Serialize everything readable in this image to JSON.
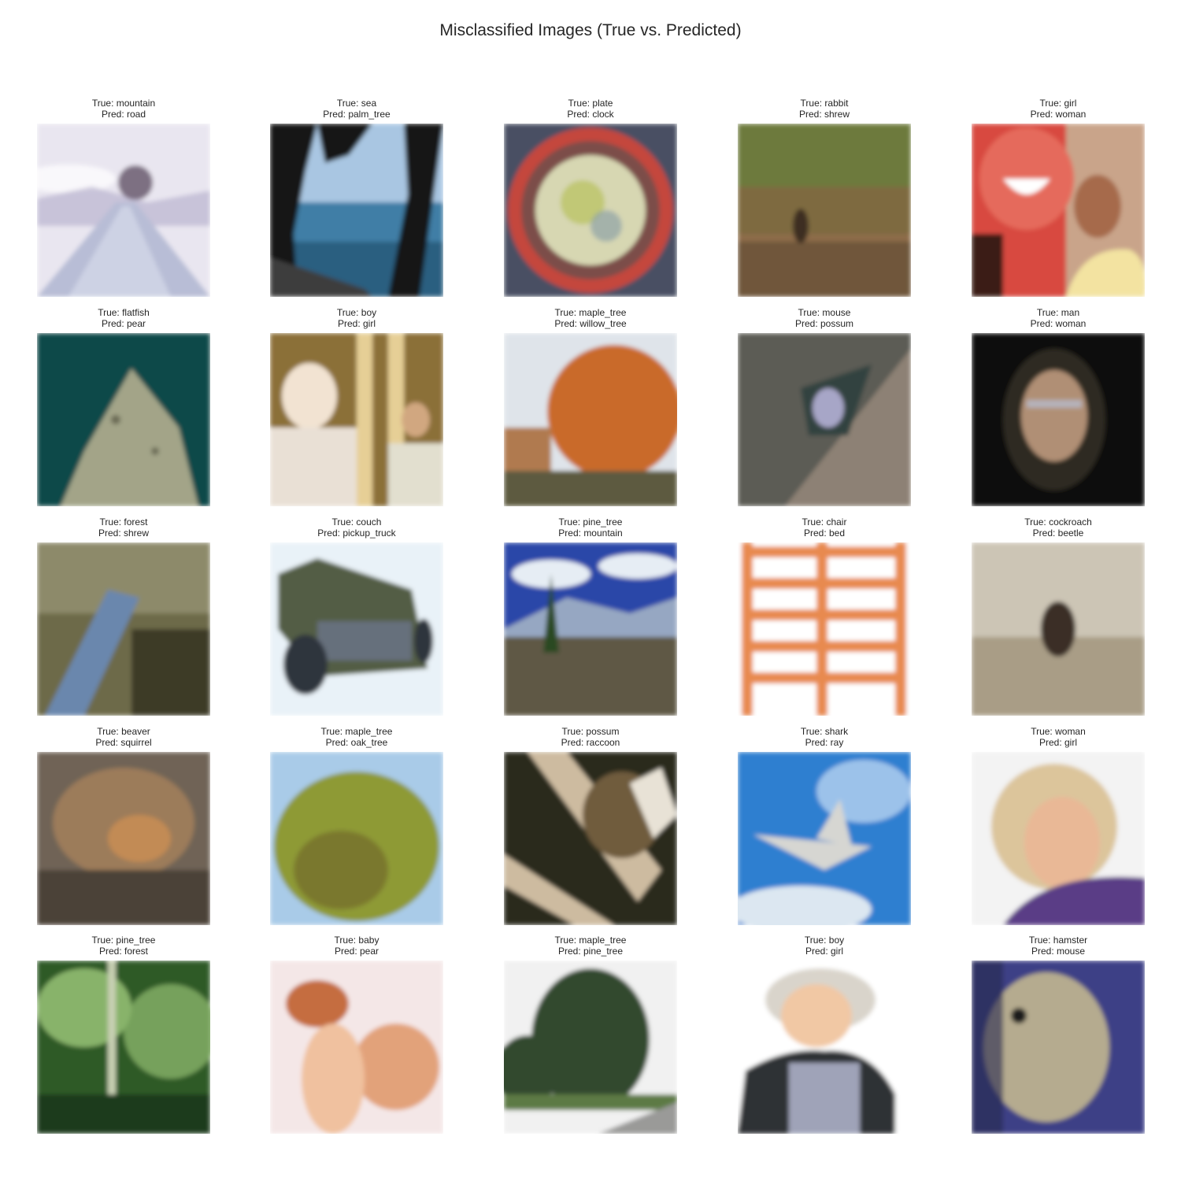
{
  "title": "Misclassified Images (True vs. Predicted)",
  "rows": [
    [
      {
        "true_label": "True: mountain",
        "pred_label": "Pred: road",
        "scene": "mountain-road",
        "colors": [
          "#e9e6f0",
          "#b9b3cf",
          "#7d6f82"
        ]
      },
      {
        "true_label": "True: sea",
        "pred_label": "Pred: palm_tree",
        "scene": "sea-trees",
        "colors": [
          "#3f7ea6",
          "#2a5e80",
          "#151515"
        ]
      },
      {
        "true_label": "True: plate",
        "pred_label": "Pred: clock",
        "scene": "plate",
        "colors": [
          "#4a4f63",
          "#c4463c",
          "#d7d7b2"
        ]
      },
      {
        "true_label": "True: rabbit",
        "pred_label": "Pred: shrew",
        "scene": "grass-animal",
        "colors": [
          "#6d7a3e",
          "#8d6c49",
          "#5b4a32"
        ]
      },
      {
        "true_label": "True: girl",
        "pred_label": "Pred: woman",
        "scene": "girl",
        "colors": [
          "#d8483f",
          "#f3e3a1",
          "#7a4f3a"
        ]
      }
    ],
    [
      {
        "true_label": "True: flatfish",
        "pred_label": "Pred: pear",
        "scene": "flatfish",
        "colors": [
          "#0f4a4a",
          "#a3a488",
          "#1d5d5a"
        ]
      },
      {
        "true_label": "True: boy",
        "pred_label": "Pred: girl",
        "scene": "boy-room",
        "colors": [
          "#8b7038",
          "#e9e0d5",
          "#5f4c27"
        ]
      },
      {
        "true_label": "True: maple_tree",
        "pred_label": "Pred: willow_tree",
        "scene": "autumn-tree",
        "colors": [
          "#dfe4ea",
          "#c96a2c",
          "#5d5a3f"
        ]
      },
      {
        "true_label": "True: mouse",
        "pred_label": "Pred: possum",
        "scene": "rock-animal",
        "colors": [
          "#5c5b54",
          "#8d8175",
          "#a7a6c7"
        ]
      },
      {
        "true_label": "True: man",
        "pred_label": "Pred: woman",
        "scene": "dark-face",
        "colors": [
          "#0e0e0c",
          "#b08f74",
          "#2d2a24"
        ]
      }
    ],
    [
      {
        "true_label": "True: forest",
        "pred_label": "Pred: shrew",
        "scene": "forest-leg",
        "colors": [
          "#6d6a49",
          "#6b87ad",
          "#3e3a27"
        ]
      },
      {
        "true_label": "True: couch",
        "pred_label": "Pred: pickup_truck",
        "scene": "truck",
        "colors": [
          "#e9f2f8",
          "#525d45",
          "#2e343e"
        ]
      },
      {
        "true_label": "True: pine_tree",
        "pred_label": "Pred: mountain",
        "scene": "landscape",
        "colors": [
          "#2c47a8",
          "#e6edf4",
          "#5f5845"
        ]
      },
      {
        "true_label": "True: chair",
        "pred_label": "Pred: bed",
        "scene": "bench",
        "colors": [
          "#ffffff",
          "#e88a4f",
          "#f3c8a5"
        ]
      },
      {
        "true_label": "True: cockroach",
        "pred_label": "Pred: beetle",
        "scene": "bug-sand",
        "colors": [
          "#ccc5b5",
          "#3b2d25",
          "#a99d86"
        ]
      }
    ],
    [
      {
        "true_label": "True: beaver",
        "pred_label": "Pred: squirrel",
        "scene": "squirrel",
        "colors": [
          "#6f6356",
          "#9c7c5a",
          "#4b4239"
        ]
      },
      {
        "true_label": "True: maple_tree",
        "pred_label": "Pred: oak_tree",
        "scene": "green-tree",
        "colors": [
          "#a9cbe8",
          "#8e9a35",
          "#6c6228"
        ]
      },
      {
        "true_label": "True: possum",
        "pred_label": "Pred: raccoon",
        "scene": "branches",
        "colors": [
          "#cdbba0",
          "#6f5b3e",
          "#2c2a1d"
        ]
      },
      {
        "true_label": "True: shark",
        "pred_label": "Pred: ray",
        "scene": "jet-sky",
        "colors": [
          "#2f7fd0",
          "#9cc2ea",
          "#d6d6d2"
        ]
      },
      {
        "true_label": "True: woman",
        "pred_label": "Pred: girl",
        "scene": "old-woman",
        "colors": [
          "#f3f3f3",
          "#dcc59b",
          "#5a3c86"
        ]
      }
    ],
    [
      {
        "true_label": "True: pine_tree",
        "pred_label": "Pred: forest",
        "scene": "dense-forest",
        "colors": [
          "#2f5a27",
          "#88b36a",
          "#1f3a1a"
        ]
      },
      {
        "true_label": "True: baby",
        "pred_label": "Pred: pear",
        "scene": "baby",
        "colors": [
          "#f4e7e7",
          "#e2a27a",
          "#c56d3f"
        ]
      },
      {
        "true_label": "True: maple_tree",
        "pred_label": "Pred: pine_tree",
        "scene": "tree-road",
        "colors": [
          "#f1f1f1",
          "#33482f",
          "#9a9a98"
        ]
      },
      {
        "true_label": "True: boy",
        "pred_label": "Pred: girl",
        "scene": "boy-cap",
        "colors": [
          "#ffffff",
          "#2f3136",
          "#9fa3b8"
        ]
      },
      {
        "true_label": "True: hamster",
        "pred_label": "Pred: mouse",
        "scene": "fish-blue",
        "colors": [
          "#3c3f86",
          "#b5ab8f",
          "#26264f"
        ]
      }
    ]
  ]
}
